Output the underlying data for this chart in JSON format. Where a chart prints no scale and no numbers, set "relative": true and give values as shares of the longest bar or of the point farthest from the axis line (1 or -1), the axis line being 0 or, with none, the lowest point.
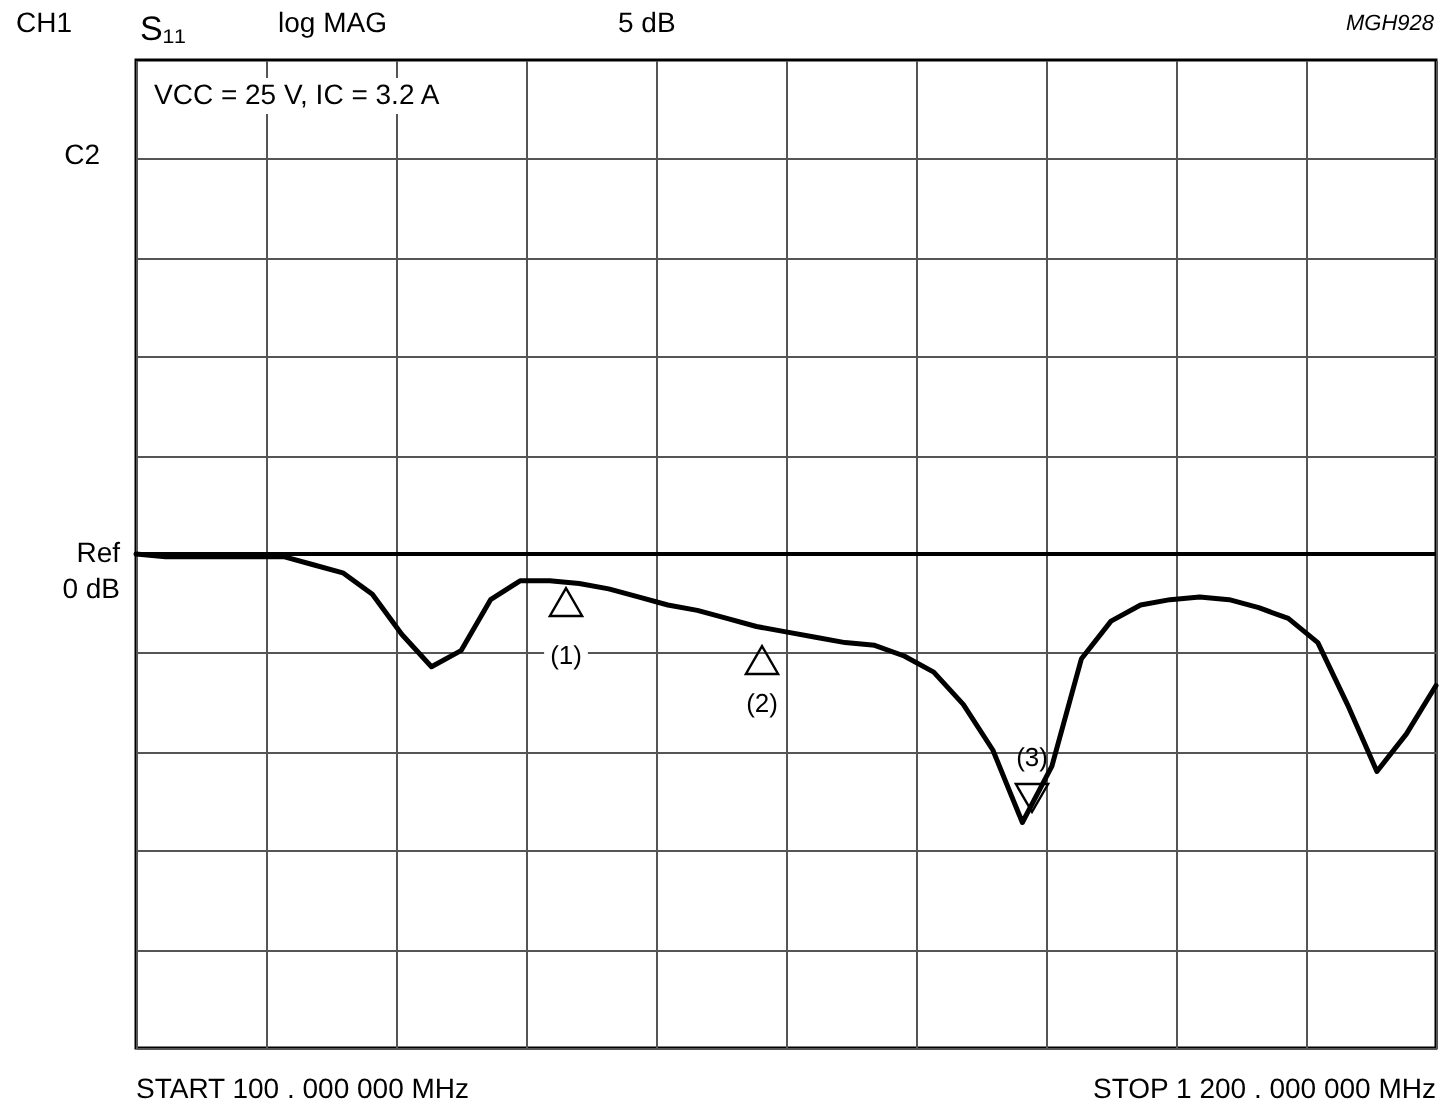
{
  "chart_data": {
    "type": "line",
    "relative": true,
    "categories": [
      null,
      null,
      null,
      null,
      null,
      null,
      null,
      null,
      null,
      null,
      null,
      null,
      null,
      null,
      null,
      null,
      null,
      null,
      null,
      null,
      null,
      null,
      null,
      null,
      null,
      null,
      null,
      null,
      null,
      null,
      null,
      null,
      null,
      null,
      null,
      null,
      null,
      null,
      null,
      null,
      null,
      null,
      null,
      null,
      null
    ],
    "series": [
      {
        "color": "#000000",
        "values": [
          0,
          -0.01,
          -0.01,
          -0.01,
          -0.01,
          -0.01,
          -0.04,
          -0.07,
          -0.15,
          -0.3,
          -0.42,
          -0.36,
          -0.17,
          -0.1,
          -0.1,
          -0.11,
          -0.13,
          -0.16,
          -0.19,
          -0.21,
          -0.24,
          -0.27,
          -0.29,
          -0.31,
          -0.33,
          -0.34,
          -0.38,
          -0.44,
          -0.56,
          -0.73,
          -1,
          -0.79,
          -0.39,
          -0.25,
          -0.19,
          -0.17,
          -0.16,
          -0.17,
          -0.2,
          -0.24,
          -0.33,
          -0.56,
          -0.81,
          -0.67,
          -0.49
        ]
      }
    ],
    "grid": true,
    "annotations": [
      "CH1",
      "S₁₁",
      "log MAG",
      "5 dB",
      "MGH928",
      "VCC = 25 V,  IC = 3.2 A",
      "C2",
      "START   100 . 000  000   MHz",
      "STOP  1  200 . 000  000   MHz",
      "Ref 0 dB",
      "(1)",
      "(2)",
      "(3)"
    ]
  }
}
